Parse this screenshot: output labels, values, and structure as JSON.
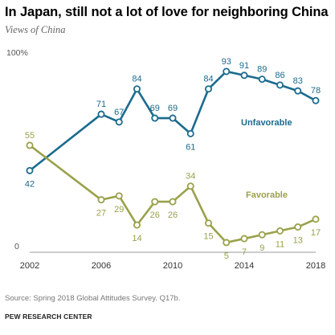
{
  "title": "In Japan, still not a lot of love for neighboring China",
  "subtitle": "Views of China",
  "source": "Source: Spring 2018 Global Attitudes Survey. Q17b.",
  "brand": "PEW RESEARCH CENTER",
  "chart_data": {
    "type": "line",
    "x": [
      2002,
      2006,
      2007,
      2008,
      2009,
      2010,
      2011,
      2012,
      2013,
      2014,
      2015,
      2016,
      2017,
      2018
    ],
    "xticks": [
      "2002",
      "2006",
      "2010",
      "2014",
      "2018"
    ],
    "xlim": [
      2002,
      2018
    ],
    "ylim": [
      0,
      100
    ],
    "yticks": [
      "0",
      "100%"
    ],
    "series": [
      {
        "name": "Unfavorable",
        "color": "#1b6b8e",
        "values": [
          42,
          71,
          67,
          84,
          69,
          69,
          61,
          84,
          93,
          91,
          89,
          86,
          83,
          78
        ]
      },
      {
        "name": "Favorable",
        "color": "#9aa14a",
        "values": [
          55,
          27,
          29,
          14,
          26,
          26,
          34,
          15,
          5,
          7,
          9,
          11,
          13,
          17
        ]
      }
    ]
  }
}
